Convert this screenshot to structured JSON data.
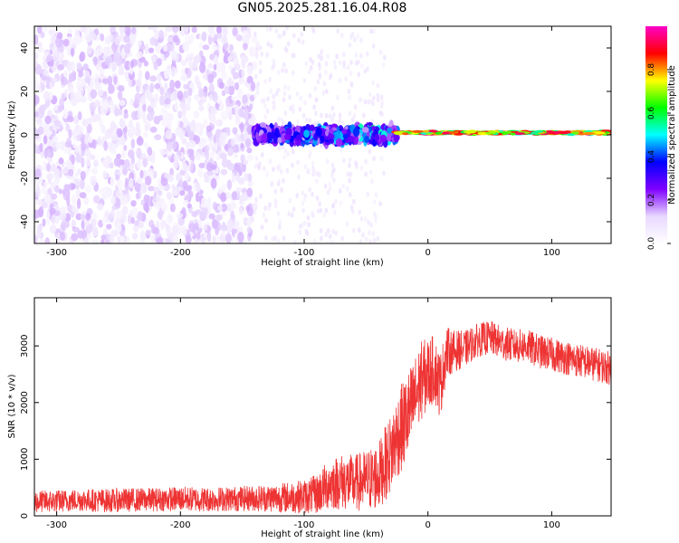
{
  "title": "GN05.2025.281.16.04.R08",
  "chart_data": [
    {
      "type": "heatmap",
      "xlabel": "Height of straight line (km)",
      "ylabel": "Frequency (Hz)",
      "xlim": [
        -318,
        148
      ],
      "ylim": [
        -50,
        50
      ],
      "x_ticks": [
        -300,
        -200,
        -100,
        0,
        100
      ],
      "y_ticks": [
        -40,
        -20,
        0,
        20,
        40
      ],
      "x_tick_labels": [
        "-300",
        "-200",
        "-100",
        "0",
        "100"
      ],
      "y_tick_labels": [
        "-40",
        "-20",
        "0",
        "20",
        "40"
      ],
      "colorbar": {
        "label": "Normalized spectral amplitude",
        "range": [
          0,
          1
        ],
        "ticks": [
          0,
          0.2,
          0.4,
          0.6,
          0.8
        ],
        "tick_labels": [
          "0.0",
          "0.2",
          "0.4",
          "0.6",
          "0.8"
        ],
        "colors": [
          "#ffffff",
          "#e8d8ff",
          "#7f00ff",
          "#0000ff",
          "#00ffff",
          "#00ff00",
          "#ffff00",
          "#ff0000",
          "#ff00c8"
        ]
      },
      "regions": [
        {
          "x_range": [
            -318,
            -140
          ],
          "freq_range": [
            -50,
            50
          ],
          "amplitude": 0.05,
          "pattern": "broadband scattered noise"
        },
        {
          "x_range": [
            -140,
            -25
          ],
          "freq_range": [
            -6,
            6
          ],
          "amplitude": 0.3,
          "pattern": "concentrated band near 0 Hz"
        },
        {
          "x_range": [
            -25,
            148
          ],
          "freq_range": [
            -1,
            3
          ],
          "amplitude": 0.85,
          "pattern": "narrow line near 0-2 Hz"
        }
      ],
      "grid": false
    },
    {
      "type": "line",
      "xlabel": "Height of straight line (km)",
      "ylabel": "SNR (10 * v/v)",
      "xlim": [
        -318,
        148
      ],
      "ylim": [
        0,
        3850
      ],
      "x_ticks": [
        -300,
        -200,
        -100,
        0,
        100
      ],
      "y_ticks": [
        0,
        1000,
        2000,
        3000
      ],
      "x_tick_labels": [
        "-300",
        "-200",
        "-100",
        "0",
        "100"
      ],
      "y_tick_labels": [
        "0",
        "1000",
        "2000",
        "3000"
      ],
      "color": "#ee3333",
      "x": [
        -318,
        -300,
        -280,
        -260,
        -240,
        -220,
        -200,
        -180,
        -160,
        -140,
        -120,
        -100,
        -90,
        -80,
        -70,
        -60,
        -50,
        -40,
        -35,
        -30,
        -25,
        -20,
        -15,
        -10,
        -5,
        0,
        5,
        10,
        15,
        20,
        30,
        40,
        50,
        60,
        70,
        80,
        90,
        100,
        110,
        120,
        130,
        140,
        148
      ],
      "y": [
        250,
        260,
        280,
        270,
        280,
        290,
        300,
        290,
        300,
        310,
        320,
        340,
        380,
        560,
        600,
        580,
        620,
        700,
        900,
        1100,
        1400,
        1600,
        1800,
        2100,
        2400,
        2500,
        2600,
        2300,
        2900,
        2900,
        2950,
        3100,
        3150,
        3050,
        3000,
        3000,
        2900,
        2850,
        2800,
        2750,
        2700,
        2650,
        2600
      ],
      "noise_amplitude": [
        200,
        200,
        200,
        210,
        210,
        210,
        220,
        220,
        220,
        230,
        260,
        300,
        350,
        450,
        500,
        500,
        550,
        600,
        650,
        700,
        750,
        800,
        800,
        750,
        700,
        650,
        600,
        600,
        450,
        380,
        320,
        300,
        300,
        300,
        300,
        300,
        300,
        300,
        300,
        300,
        300,
        300,
        300
      ],
      "grid": false
    }
  ]
}
